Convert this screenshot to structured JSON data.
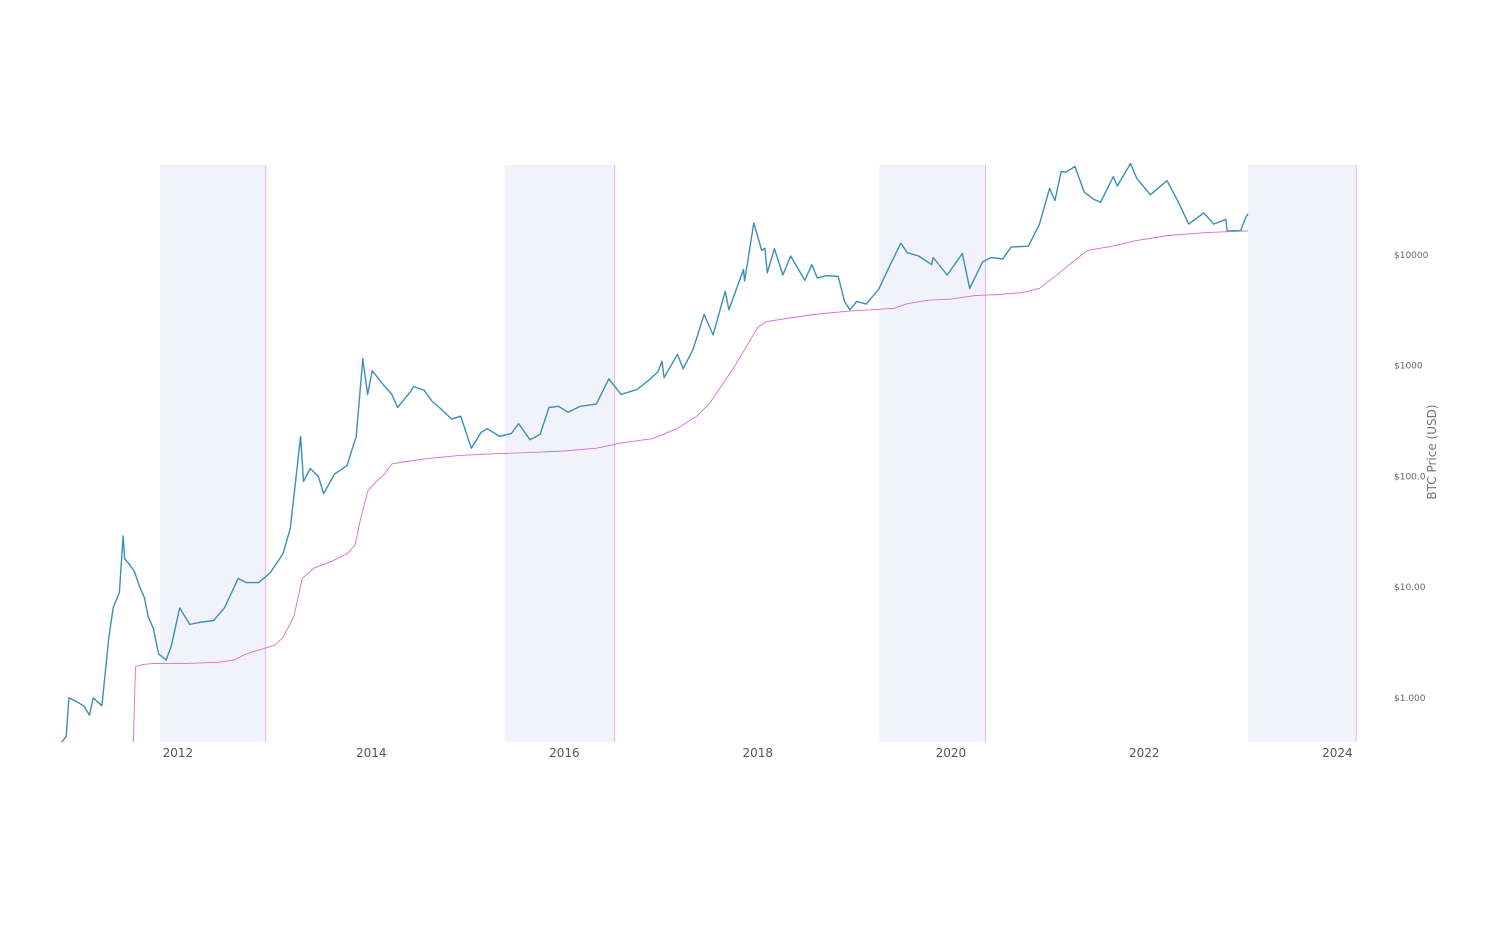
{
  "chart_data": {
    "type": "line",
    "title": "",
    "xlabel": "",
    "ylabel": "BTC Price (USD)",
    "y_scale": "log",
    "ylim": [
      0.4,
      65000
    ],
    "xlim": [
      "2010-10-20",
      "2024-03-15"
    ],
    "x_ticks": [
      {
        "x": "2012-01-01",
        "label": "2012"
      },
      {
        "x": "2014-01-01",
        "label": "2014"
      },
      {
        "x": "2016-01-01",
        "label": "2016"
      },
      {
        "x": "2018-01-01",
        "label": "2018"
      },
      {
        "x": "2020-01-01",
        "label": "2020"
      },
      {
        "x": "2022-01-01",
        "label": "2022"
      },
      {
        "x": "2024-01-01",
        "label": "2024"
      }
    ],
    "y_ticks": [
      {
        "y": 1,
        "label": "$1.000"
      },
      {
        "y": 10,
        "label": "$10.00"
      },
      {
        "y": 100,
        "label": "$100.0"
      },
      {
        "y": 1000,
        "label": "$1000"
      },
      {
        "y": 10000,
        "label": "$10000"
      }
    ],
    "y_axis_side": "right",
    "grid": false,
    "legend": "none",
    "colors": {
      "price_line": "#3a8fb8",
      "floor_line": "#d96bd9",
      "band_fill": "#f2f3fa",
      "band_edge": "#e7b3f0"
    },
    "shaded_bands": [
      {
        "start": "2011-10-25",
        "end": "2012-11-28"
      },
      {
        "start": "2015-05-20",
        "end": "2016-07-09"
      },
      {
        "start": "2019-04-05",
        "end": "2020-05-11"
      },
      {
        "start": "2023-01-28",
        "end": "2024-03-12"
      }
    ],
    "series": [
      {
        "values": [
          [
            "2010-10-20",
            0.4
          ],
          [
            "2010-11-05",
            0.45
          ],
          [
            "2010-11-15",
            1.0
          ],
          [
            "2010-12-05",
            0.95
          ],
          [
            "2011-01-10",
            0.85
          ],
          [
            "2011-02-01",
            0.7
          ],
          [
            "2011-02-15",
            1.0
          ],
          [
            "2011-03-20",
            0.85
          ],
          [
            "2011-04-15",
            3.5
          ],
          [
            "2011-05-01",
            6.5
          ],
          [
            "2011-05-25",
            9.0
          ],
          [
            "2011-06-08",
            29.0
          ],
          [
            "2011-06-14",
            18.0
          ],
          [
            "2011-06-28",
            16.5
          ],
          [
            "2011-07-20",
            14.0
          ],
          [
            "2011-08-10",
            10.0
          ],
          [
            "2011-08-28",
            8.0
          ],
          [
            "2011-09-10",
            5.5
          ],
          [
            "2011-10-01",
            4.2
          ],
          [
            "2011-10-20",
            2.5
          ],
          [
            "2011-11-18",
            2.2
          ],
          [
            "2011-12-08",
            3.0
          ],
          [
            "2012-01-08",
            6.5
          ],
          [
            "2012-02-15",
            4.6
          ],
          [
            "2012-03-20",
            4.8
          ],
          [
            "2012-05-15",
            5.0
          ],
          [
            "2012-06-25",
            6.5
          ],
          [
            "2012-08-16",
            12.0
          ],
          [
            "2012-09-15",
            11.0
          ],
          [
            "2012-11-01",
            11.0
          ],
          [
            "2012-12-15",
            13.5
          ],
          [
            "2013-02-01",
            20.0
          ],
          [
            "2013-03-01",
            34.0
          ],
          [
            "2013-04-09",
            230.0
          ],
          [
            "2013-04-20",
            90.0
          ],
          [
            "2013-05-15",
            118.0
          ],
          [
            "2013-06-15",
            100.0
          ],
          [
            "2013-07-05",
            70.0
          ],
          [
            "2013-08-15",
            105.0
          ],
          [
            "2013-10-01",
            125.0
          ],
          [
            "2013-11-05",
            230.0
          ],
          [
            "2013-11-30",
            1150.0
          ],
          [
            "2013-12-18",
            550.0
          ],
          [
            "2014-01-05",
            900.0
          ],
          [
            "2014-02-10",
            700.0
          ],
          [
            "2014-03-20",
            550.0
          ],
          [
            "2014-04-10",
            420.0
          ],
          [
            "2014-05-28",
            580.0
          ],
          [
            "2014-06-10",
            650.0
          ],
          [
            "2014-07-20",
            600.0
          ],
          [
            "2014-08-18",
            480.0
          ],
          [
            "2014-09-20",
            410.0
          ],
          [
            "2014-11-01",
            330.0
          ],
          [
            "2014-12-05",
            350.0
          ],
          [
            "2015-01-14",
            180.0
          ],
          [
            "2015-02-20",
            250.0
          ],
          [
            "2015-03-15",
            270.0
          ],
          [
            "2015-05-01",
            230.0
          ],
          [
            "2015-06-15",
            245.0
          ],
          [
            "2015-07-12",
            300.0
          ],
          [
            "2015-08-24",
            215.0
          ],
          [
            "2015-10-01",
            240.0
          ],
          [
            "2015-11-04",
            420.0
          ],
          [
            "2015-12-10",
            430.0
          ],
          [
            "2016-01-15",
            380.0
          ],
          [
            "2016-03-01",
            430.0
          ],
          [
            "2016-05-01",
            450.0
          ],
          [
            "2016-06-17",
            760.0
          ],
          [
            "2016-07-10",
            650.0
          ],
          [
            "2016-08-02",
            550.0
          ],
          [
            "2016-10-01",
            610.0
          ],
          [
            "2016-11-15",
            740.0
          ],
          [
            "2016-12-20",
            880.0
          ],
          [
            "2017-01-04",
            1100.0
          ],
          [
            "2017-01-12",
            780.0
          ],
          [
            "2017-03-03",
            1270.0
          ],
          [
            "2017-03-25",
            940.0
          ],
          [
            "2017-05-01",
            1400.0
          ],
          [
            "2017-06-12",
            2900.0
          ],
          [
            "2017-07-16",
            1900.0
          ],
          [
            "2017-08-31",
            4700.0
          ],
          [
            "2017-09-14",
            3200.0
          ],
          [
            "2017-11-08",
            7400.0
          ],
          [
            "2017-11-12",
            5800.0
          ],
          [
            "2017-12-17",
            19500.0
          ],
          [
            "2018-01-16",
            11000.0
          ],
          [
            "2018-01-28",
            11500.0
          ],
          [
            "2018-02-06",
            6900.0
          ],
          [
            "2018-03-05",
            11400.0
          ],
          [
            "2018-04-06",
            6600.0
          ],
          [
            "2018-05-05",
            9800.0
          ],
          [
            "2018-06-28",
            5900.0
          ],
          [
            "2018-07-24",
            8200.0
          ],
          [
            "2018-08-14",
            6200.0
          ],
          [
            "2018-09-15",
            6500.0
          ],
          [
            "2018-11-01",
            6400.0
          ],
          [
            "2018-11-25",
            3800.0
          ],
          [
            "2018-12-15",
            3200.0
          ],
          [
            "2019-01-10",
            3800.0
          ],
          [
            "2019-02-15",
            3600.0
          ],
          [
            "2019-04-03",
            4900.0
          ],
          [
            "2019-05-15",
            8000.0
          ],
          [
            "2019-06-26",
            12800.0
          ],
          [
            "2019-07-20",
            10500.0
          ],
          [
            "2019-09-01",
            9800.0
          ],
          [
            "2019-10-20",
            8200.0
          ],
          [
            "2019-10-26",
            9500.0
          ],
          [
            "2019-12-18",
            6600.0
          ],
          [
            "2020-02-13",
            10300.0
          ],
          [
            "2020-03-12",
            5000.0
          ],
          [
            "2020-04-30",
            8700.0
          ],
          [
            "2020-06-01",
            9500.0
          ],
          [
            "2020-07-15",
            9200.0
          ],
          [
            "2020-08-15",
            11800.0
          ],
          [
            "2020-10-20",
            12000.0
          ],
          [
            "2020-12-01",
            19000.0
          ],
          [
            "2021-01-08",
            40000.0
          ],
          [
            "2021-01-28",
            31000.0
          ],
          [
            "2021-02-21",
            57000.0
          ],
          [
            "2021-03-10",
            56000.0
          ],
          [
            "2021-04-14",
            63000.0
          ],
          [
            "2021-05-19",
            37000.0
          ],
          [
            "2021-06-22",
            32000.0
          ],
          [
            "2021-07-20",
            30000.0
          ],
          [
            "2021-09-06",
            51000.0
          ],
          [
            "2021-09-21",
            42000.0
          ],
          [
            "2021-11-10",
            67000.0
          ],
          [
            "2021-12-04",
            49000.0
          ],
          [
            "2022-01-24",
            35000.0
          ],
          [
            "2022-03-28",
            47000.0
          ],
          [
            "2022-05-10",
            30000.0
          ],
          [
            "2022-06-18",
            19000.0
          ],
          [
            "2022-08-14",
            24000.0
          ],
          [
            "2022-09-20",
            19000.0
          ],
          [
            "2022-11-05",
            21000.0
          ],
          [
            "2022-11-10",
            16500.0
          ],
          [
            "2022-12-31",
            16600.0
          ],
          [
            "2023-01-20",
            22000.0
          ],
          [
            "2023-01-28",
            23500.0
          ]
        ]
      },
      {
        "values": [
          [
            "2011-07-17",
            0.4
          ],
          [
            "2011-07-25",
            1.9
          ],
          [
            "2011-08-20",
            2.0
          ],
          [
            "2011-10-01",
            2.05
          ],
          [
            "2012-02-01",
            2.05
          ],
          [
            "2012-06-01",
            2.1
          ],
          [
            "2012-08-01",
            2.2
          ],
          [
            "2012-09-15",
            2.5
          ],
          [
            "2012-11-01",
            2.7
          ],
          [
            "2013-01-01",
            3.0
          ],
          [
            "2013-02-01",
            3.5
          ],
          [
            "2013-03-15",
            5.5
          ],
          [
            "2013-04-15",
            12.0
          ],
          [
            "2013-06-01",
            15.0
          ],
          [
            "2013-08-01",
            17.0
          ],
          [
            "2013-10-01",
            20.0
          ],
          [
            "2013-11-01",
            24.0
          ],
          [
            "2013-11-20",
            40.0
          ],
          [
            "2013-12-05",
            55.0
          ],
          [
            "2013-12-20",
            75.0
          ],
          [
            "2014-01-20",
            90.0
          ],
          [
            "2014-02-20",
            105.0
          ],
          [
            "2014-03-20",
            130.0
          ],
          [
            "2014-05-01",
            135.0
          ],
          [
            "2014-08-01",
            145.0
          ],
          [
            "2014-12-01",
            155.0
          ],
          [
            "2015-04-01",
            160.0
          ],
          [
            "2015-09-01",
            165.0
          ],
          [
            "2016-01-01",
            170.0
          ],
          [
            "2016-05-01",
            180.0
          ],
          [
            "2016-08-01",
            200.0
          ],
          [
            "2016-12-01",
            220.0
          ],
          [
            "2017-03-01",
            270.0
          ],
          [
            "2017-05-15",
            350.0
          ],
          [
            "2017-07-01",
            450.0
          ],
          [
            "2017-08-15",
            650.0
          ],
          [
            "2017-10-01",
            950.0
          ],
          [
            "2017-11-20",
            1500.0
          ],
          [
            "2017-12-31",
            2200.0
          ],
          [
            "2018-02-01",
            2500.0
          ],
          [
            "2018-05-01",
            2700.0
          ],
          [
            "2018-08-01",
            2900.0
          ],
          [
            "2018-12-01",
            3100.0
          ],
          [
            "2019-06-01",
            3300.0
          ],
          [
            "2019-07-15",
            3600.0
          ],
          [
            "2019-10-01",
            3900.0
          ],
          [
            "2020-01-01",
            4000.0
          ],
          [
            "2020-04-01",
            4300.0
          ],
          [
            "2020-07-01",
            4400.0
          ],
          [
            "2020-10-01",
            4600.0
          ],
          [
            "2020-12-01",
            5000.0
          ],
          [
            "2021-02-01",
            6500.0
          ],
          [
            "2021-04-01",
            8500.0
          ],
          [
            "2021-06-01",
            11000.0
          ],
          [
            "2021-09-01",
            12000.0
          ],
          [
            "2021-12-01",
            13500.0
          ],
          [
            "2022-04-01",
            15000.0
          ],
          [
            "2022-09-01",
            16000.0
          ],
          [
            "2023-01-28",
            16500.0
          ]
        ]
      }
    ]
  }
}
